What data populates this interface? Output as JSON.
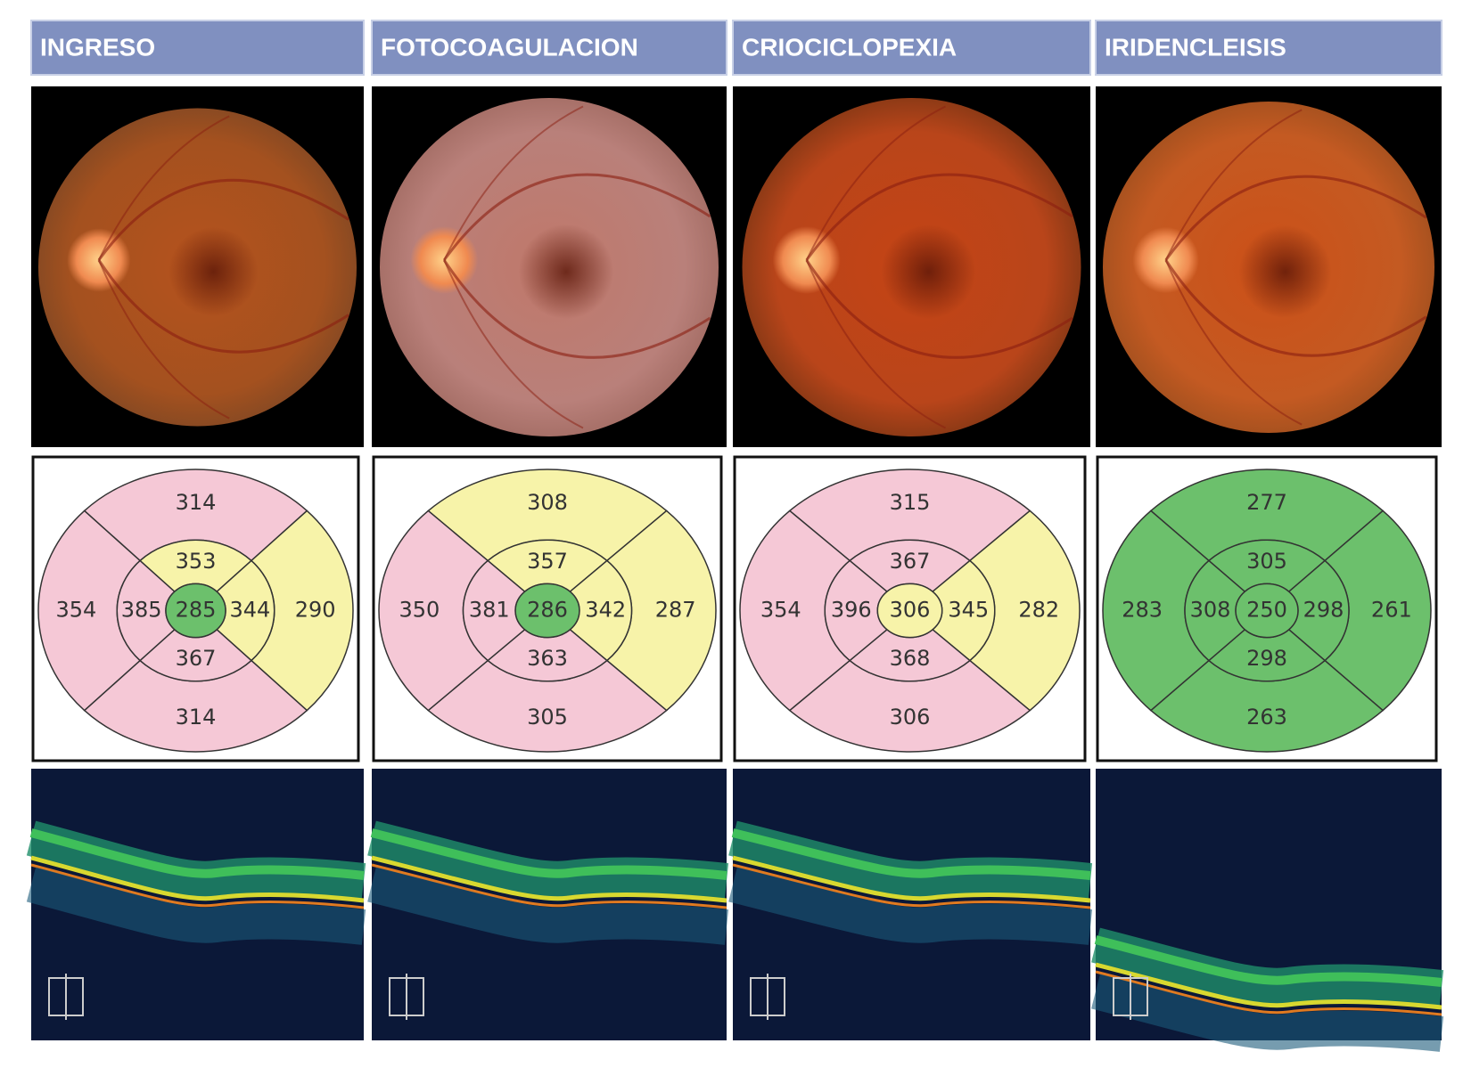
{
  "columns": [
    {
      "header": "INGRESO",
      "thickness_map": {
        "center": 285,
        "center_color": "#6cc06c",
        "inner": [
          353,
          344,
          367,
          385
        ],
        "inner_colors": [
          "#f7f3a9",
          "#f7f3a9",
          "#f5c8d6",
          "#f5c8d6"
        ],
        "outer": [
          314,
          290,
          314,
          354
        ],
        "outer_colors": [
          "#f5c8d6",
          "#f7f3a9",
          "#f5c8d6",
          "#f5c8d6"
        ]
      }
    },
    {
      "header": "FOTOCOAGULACION",
      "thickness_map": {
        "center": 286,
        "center_color": "#6cc06c",
        "inner": [
          357,
          342,
          363,
          381
        ],
        "inner_colors": [
          "#f7f3a9",
          "#f7f3a9",
          "#f5c8d6",
          "#f5c8d6"
        ],
        "outer": [
          308,
          287,
          305,
          350
        ],
        "outer_colors": [
          "#f7f3a9",
          "#f7f3a9",
          "#f5c8d6",
          "#f5c8d6"
        ]
      }
    },
    {
      "header": "CRIOCICLOPEXIA",
      "thickness_map": {
        "center": 306,
        "center_color": "#f7f3a9",
        "inner": [
          367,
          345,
          368,
          396
        ],
        "inner_colors": [
          "#f5c8d6",
          "#f7f3a9",
          "#f5c8d6",
          "#f5c8d6"
        ],
        "outer": [
          315,
          282,
          306,
          354
        ],
        "outer_colors": [
          "#f5c8d6",
          "#f7f3a9",
          "#f5c8d6",
          "#f5c8d6"
        ]
      }
    },
    {
      "header": "IRIDENCLEISIS",
      "thickness_map": {
        "center": 250,
        "center_color": "#6cc06c",
        "inner": [
          305,
          298,
          298,
          308
        ],
        "inner_colors": [
          "#6cc06c",
          "#6cc06c",
          "#6cc06c",
          "#6cc06c"
        ],
        "outer": [
          277,
          261,
          263,
          283
        ],
        "outer_colors": [
          "#6cc06c",
          "#6cc06c",
          "#6cc06c",
          "#6cc06c"
        ]
      }
    }
  ]
}
